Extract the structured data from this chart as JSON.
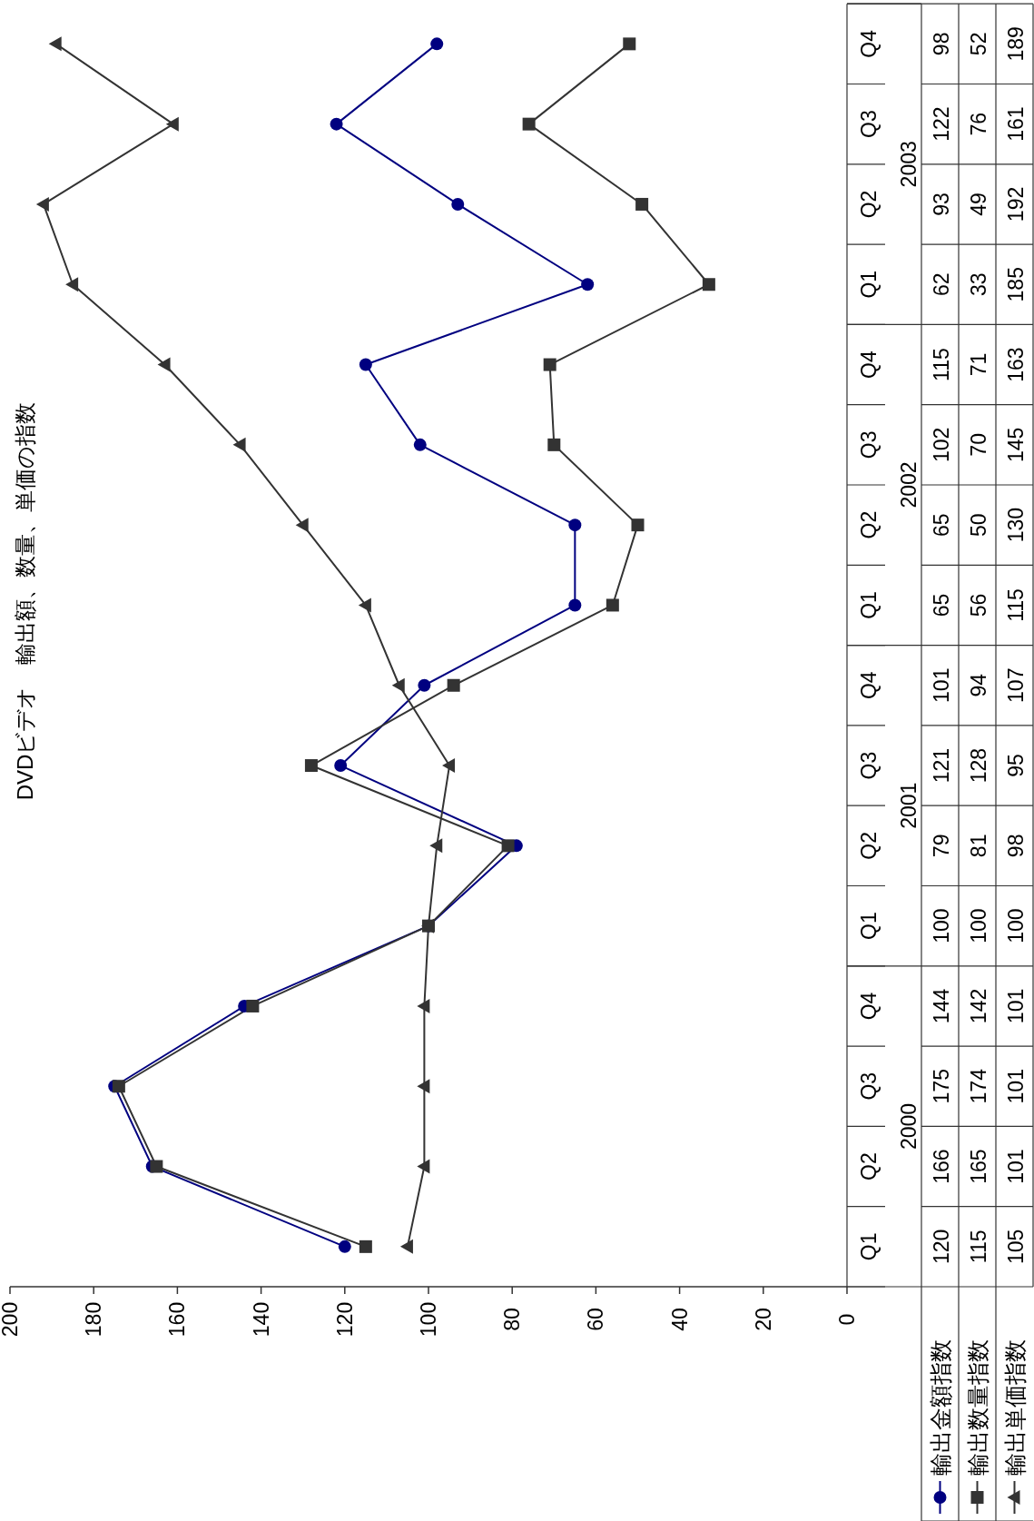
{
  "chart_data": {
    "type": "line",
    "orientation": "horizontal",
    "title": "DVDビデオ　輸出額、数量、単価の指数",
    "categories": [
      "Q4",
      "Q3",
      "Q2",
      "Q1",
      "Q4",
      "Q3",
      "Q2",
      "Q1",
      "Q4",
      "Q3",
      "Q2",
      "Q1",
      "Q4",
      "Q3",
      "Q2",
      "Q1"
    ],
    "annotations": [
      "2003",
      "2002",
      "2001",
      "2000"
    ],
    "series": [
      {
        "name": "輸出金額指数",
        "color": "#000080",
        "marker": "circle",
        "values": [
          98,
          122,
          93,
          62,
          115,
          102,
          65,
          65,
          101,
          121,
          79,
          100,
          144,
          175,
          166,
          120
        ]
      },
      {
        "name": "輸出数量指数",
        "color": "#333333",
        "marker": "square",
        "values": [
          52,
          76,
          49,
          33,
          71,
          70,
          50,
          56,
          94,
          128,
          81,
          100,
          142,
          174,
          165,
          115
        ]
      },
      {
        "name": "輸出単価指数",
        "color": "#333333",
        "marker": "triangle",
        "values": [
          189,
          161,
          192,
          185,
          163,
          145,
          130,
          115,
          107,
          95,
          98,
          100,
          101,
          101,
          101,
          105
        ]
      }
    ],
    "xlim": [
      200,
      0
    ],
    "xticks": [
      200,
      180,
      160,
      140,
      120,
      100,
      80,
      60,
      40,
      20,
      0
    ],
    "data_labels": true,
    "legend": "bottom",
    "line_style": "solid",
    "grid": false
  }
}
